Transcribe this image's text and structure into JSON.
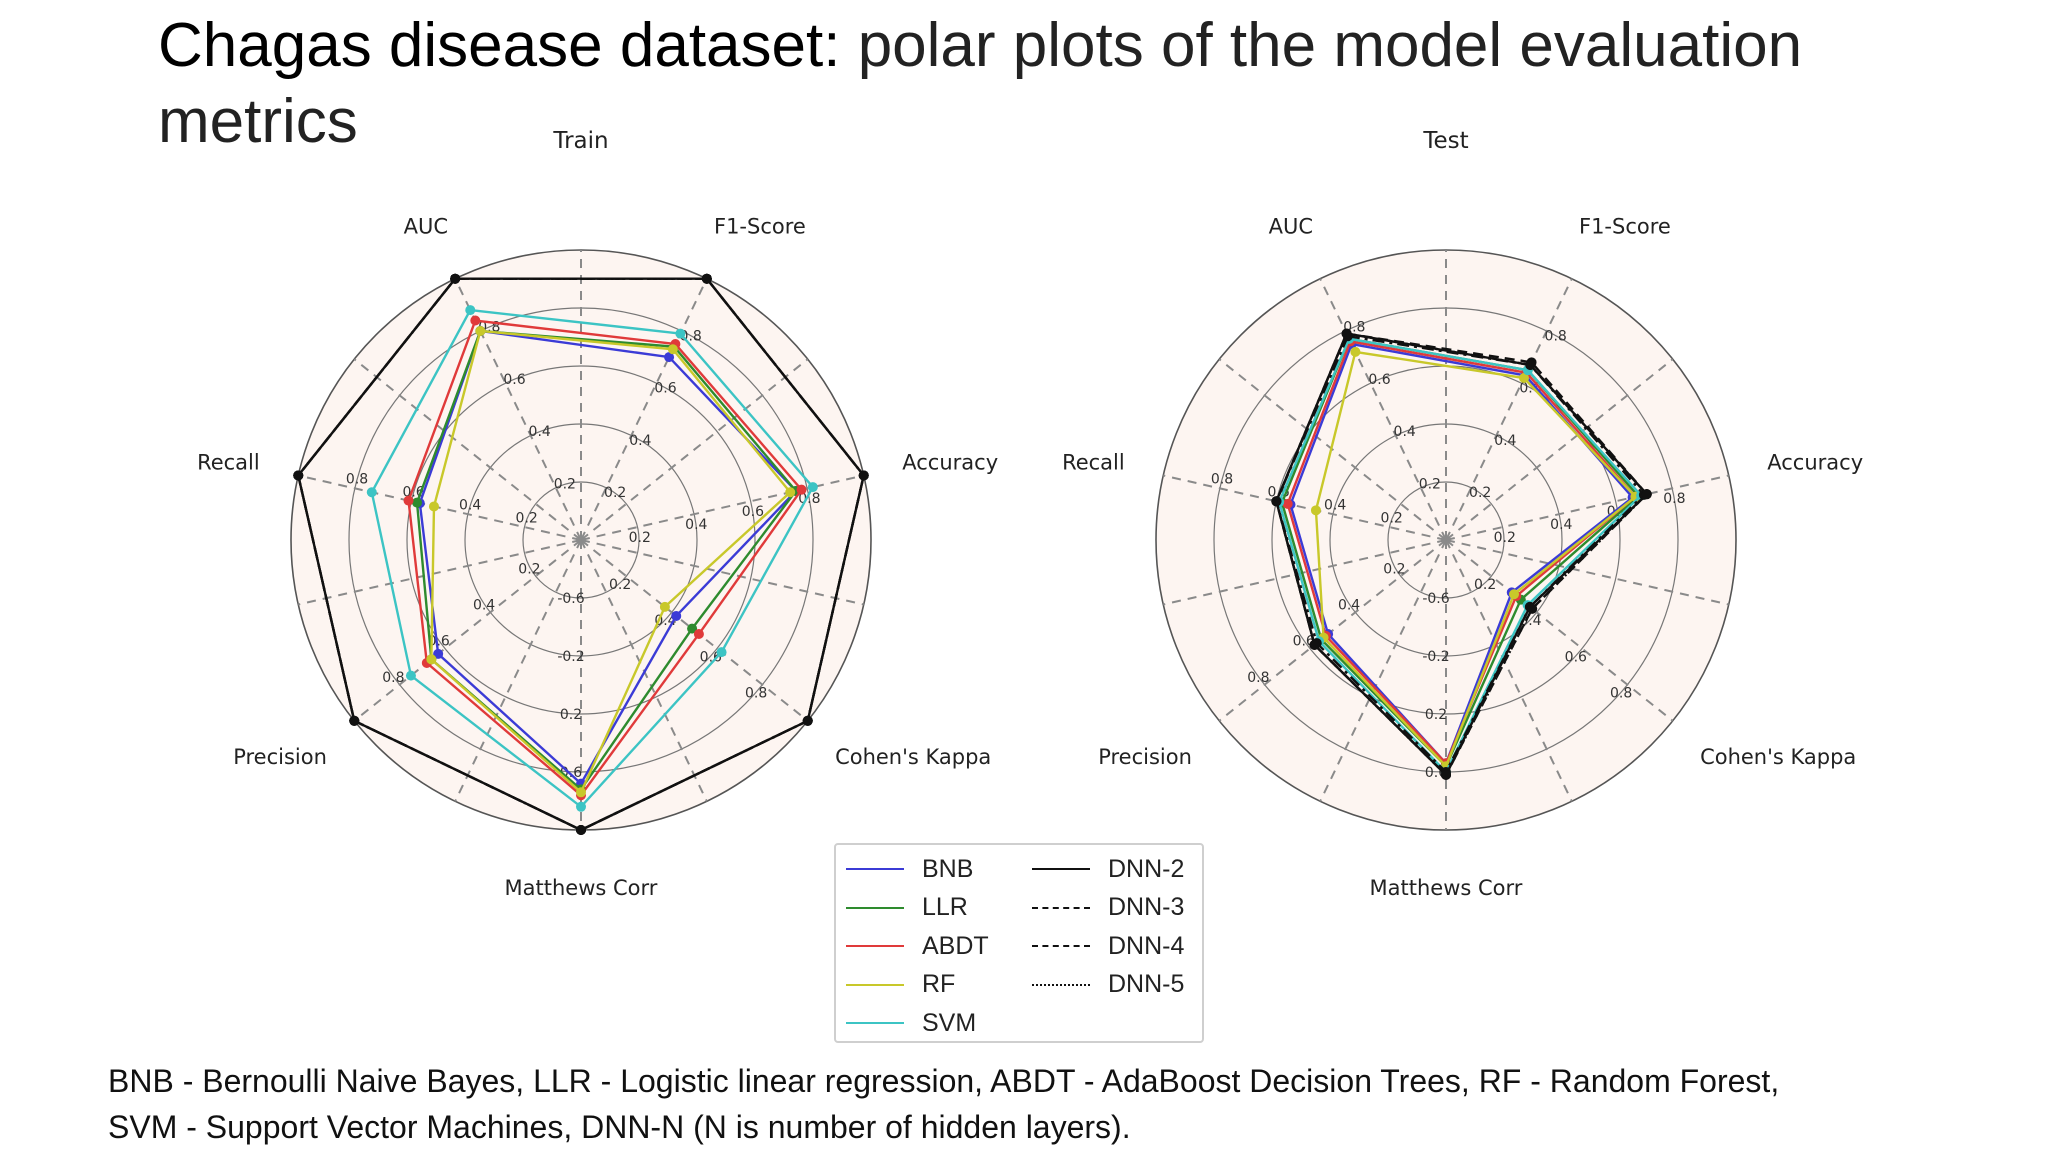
{
  "slide": {
    "title_lead": "Chagas disease dataset:",
    "title_rest": " polar plots of the model evaluation metrics",
    "caption_line1": "BNB - Bernoulli Naive Bayes, LLR - Logistic linear regression, ABDT - AdaBoost Decision Trees, RF - Random Forest,",
    "caption_line2": "SVM - Support Vector Machines, DNN-N (N is number of hidden layers)."
  },
  "legend": [
    {
      "name": "BNB",
      "color": "#3b3bd6",
      "dash": "solid"
    },
    {
      "name": "LLR",
      "color": "#2e8b2e",
      "dash": "solid"
    },
    {
      "name": "ABDT",
      "color": "#e03a3a",
      "dash": "solid"
    },
    {
      "name": "RF",
      "color": "#c8c82a",
      "dash": "solid"
    },
    {
      "name": "SVM",
      "color": "#3cc4c4",
      "dash": "solid"
    },
    {
      "name": "DNN-2",
      "color": "#111111",
      "dash": "solid"
    },
    {
      "name": "DNN-3",
      "color": "#111111",
      "dash": "dashed"
    },
    {
      "name": "DNN-4",
      "color": "#111111",
      "dash": "dashdot"
    },
    {
      "name": "DNN-5",
      "color": "#111111",
      "dash": "dotted"
    }
  ],
  "chart_data": [
    {
      "type": "radar",
      "title": "Train",
      "axes": [
        "AUC",
        "F1-Score",
        "Accuracy",
        "Cohen's Kappa",
        "Matthews Corr",
        "Precision",
        "Recall"
      ],
      "rmax": 1.0,
      "axis_tick_labels": {
        "AUC": [
          "0.2",
          "0.4",
          "0.6",
          "0.8"
        ],
        "F1-Score": [
          "0.2",
          "0.4",
          "0.6",
          "0.8"
        ],
        "Accuracy": [
          "0.2",
          "0.4",
          "0.6",
          "0.8"
        ],
        "Cohen's Kappa": [
          "0.2",
          "0.4",
          "0.6",
          "0.8"
        ],
        "Matthews Corr": [
          "-0.6",
          "-0.2",
          "0.2",
          "0.6"
        ],
        "Precision": [
          "0.2",
          "0.4",
          "0.6",
          "0.8"
        ],
        "Recall": [
          "0.2",
          "0.4",
          "0.6",
          "0.8"
        ]
      },
      "series": [
        {
          "name": "BNB",
          "values": [
            0.8,
            0.7,
            0.76,
            0.42,
            0.84,
            0.63,
            0.57
          ]
        },
        {
          "name": "LLR",
          "values": [
            0.8,
            0.74,
            0.76,
            0.49,
            0.86,
            0.66,
            0.58
          ]
        },
        {
          "name": "ABDT",
          "values": [
            0.84,
            0.75,
            0.78,
            0.52,
            0.88,
            0.68,
            0.61
          ]
        },
        {
          "name": "RF",
          "values": [
            0.8,
            0.73,
            0.74,
            0.37,
            0.87,
            0.66,
            0.52
          ]
        },
        {
          "name": "SVM",
          "values": [
            0.88,
            0.79,
            0.82,
            0.62,
            0.92,
            0.75,
            0.74
          ]
        },
        {
          "name": "DNN-2",
          "values": [
            1.0,
            1.0,
            1.0,
            1.0,
            1.0,
            1.0,
            1.0
          ]
        },
        {
          "name": "DNN-3",
          "values": [
            1.0,
            1.0,
            1.0,
            1.0,
            1.0,
            1.0,
            1.0
          ]
        },
        {
          "name": "DNN-4",
          "values": [
            1.0,
            1.0,
            1.0,
            1.0,
            1.0,
            1.0,
            1.0
          ]
        },
        {
          "name": "DNN-5",
          "values": [
            1.0,
            1.0,
            1.0,
            1.0,
            1.0,
            1.0,
            1.0
          ]
        }
      ]
    },
    {
      "type": "radar",
      "title": "Test",
      "axes": [
        "AUC",
        "F1-Score",
        "Accuracy",
        "Cohen's Kappa",
        "Matthews Corr",
        "Precision",
        "Recall"
      ],
      "rmax": 1.0,
      "axis_tick_labels": {
        "AUC": [
          "0.2",
          "0.4",
          "0.6",
          "0.8"
        ],
        "F1-Score": [
          "0.2",
          "0.4",
          "0.6",
          "0.8"
        ],
        "Accuracy": [
          "0.2",
          "0.4",
          "0.6",
          "0.8"
        ],
        "Cohen's Kappa": [
          "0.2",
          "0.4",
          "0.6",
          "0.8"
        ],
        "Matthews Corr": [
          "-0.6",
          "-0.2",
          "0.2",
          "0.6"
        ],
        "Precision": [
          "0.2",
          "0.4",
          "0.6",
          "0.8"
        ],
        "Recall": [
          "0.2",
          "0.4",
          "0.6",
          "0.8"
        ]
      },
      "series": [
        {
          "name": "BNB",
          "values": [
            0.75,
            0.63,
            0.66,
            0.29,
            0.77,
            0.52,
            0.55
          ]
        },
        {
          "name": "LLR",
          "values": [
            0.77,
            0.65,
            0.68,
            0.33,
            0.78,
            0.55,
            0.58
          ]
        },
        {
          "name": "ABDT",
          "values": [
            0.76,
            0.64,
            0.67,
            0.31,
            0.77,
            0.53,
            0.56
          ]
        },
        {
          "name": "RF",
          "values": [
            0.72,
            0.62,
            0.67,
            0.3,
            0.78,
            0.54,
            0.46
          ]
        },
        {
          "name": "SVM",
          "values": [
            0.77,
            0.65,
            0.69,
            0.36,
            0.8,
            0.56,
            0.59
          ]
        },
        {
          "name": "DNN-2",
          "values": [
            0.79,
            0.67,
            0.71,
            0.37,
            0.81,
            0.58,
            0.6
          ]
        },
        {
          "name": "DNN-3",
          "values": [
            0.79,
            0.68,
            0.71,
            0.38,
            0.81,
            0.58,
            0.6
          ]
        },
        {
          "name": "DNN-4",
          "values": [
            0.78,
            0.67,
            0.7,
            0.37,
            0.8,
            0.57,
            0.6
          ]
        },
        {
          "name": "DNN-5",
          "values": [
            0.79,
            0.67,
            0.71,
            0.38,
            0.81,
            0.58,
            0.6
          ]
        }
      ]
    }
  ]
}
